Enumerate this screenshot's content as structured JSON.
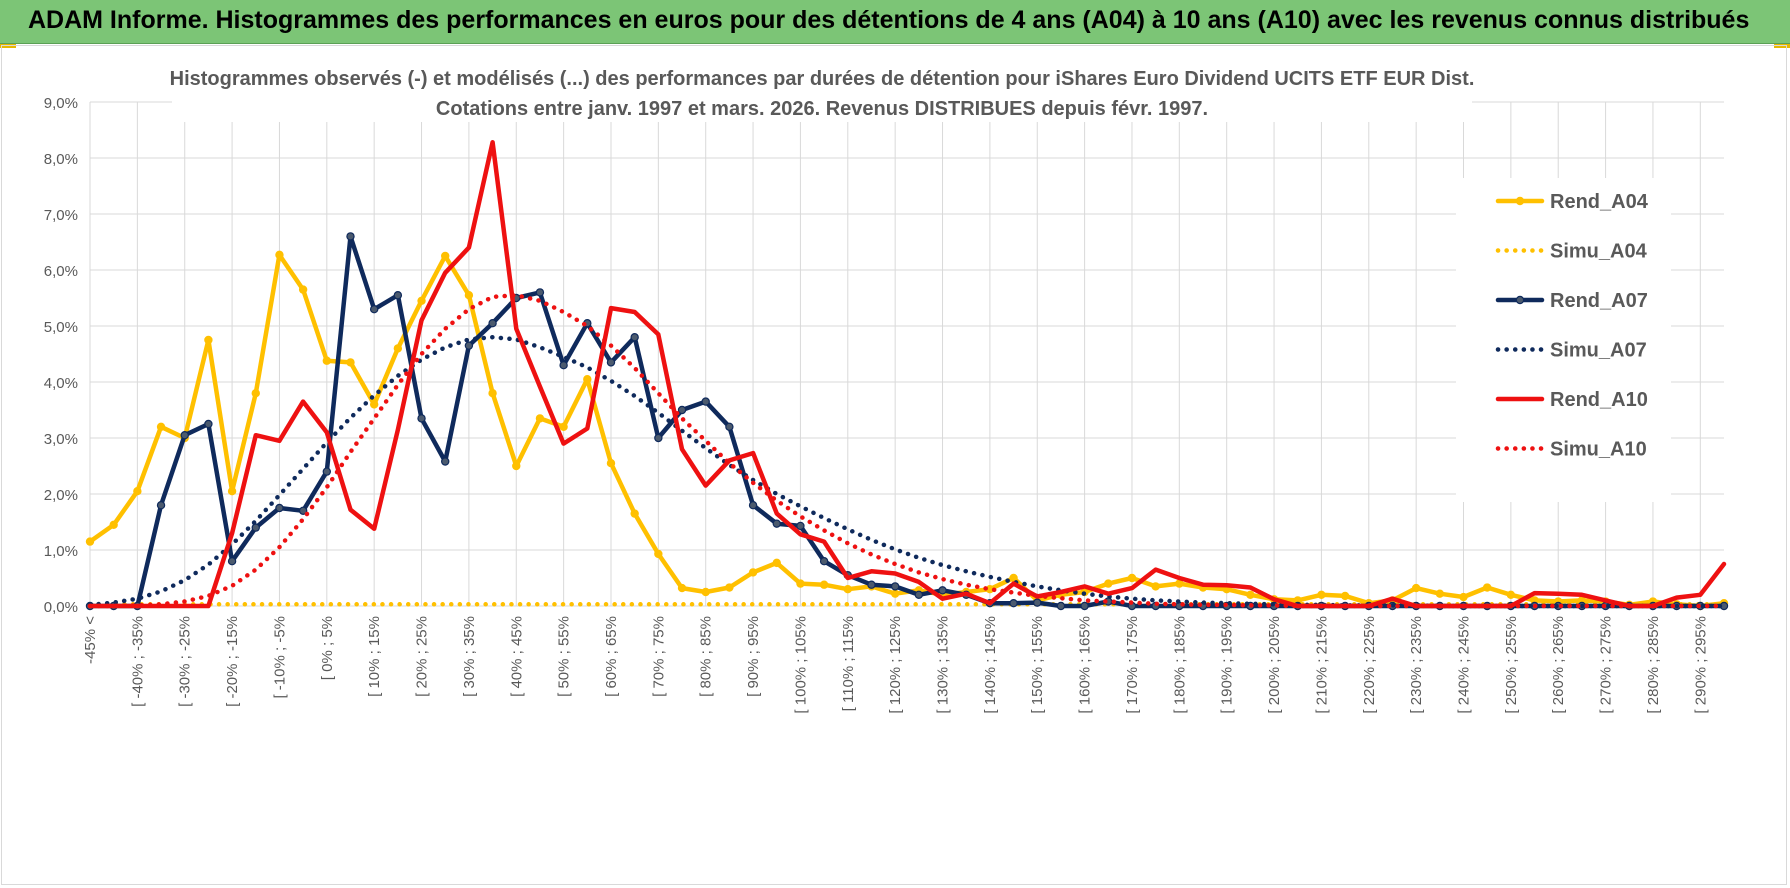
{
  "banner": {
    "title": "ADAM Informe. Histogrammes des performances en euros pour des détentions de 4 ans (A04) à 10 ans (A10) avec les revenus connus distribués",
    "color": "#7cc576",
    "accent": "#e6b800"
  },
  "chart_data": {
    "type": "line",
    "title_line1": "Histogrammes observés (-) et modélisés (...) des performances par durées de détention pour iShares Euro Dividend UCITS ETF EUR Dist.",
    "title_line2": "Cotations entre janv. 1997 et mars. 2026. Revenus DISTRIBUES depuis févr. 1997.",
    "xlabel": "",
    "ylabel": "",
    "ylim": [
      0,
      9
    ],
    "yticks": [
      "0,0%",
      "1,0%",
      "2,0%",
      "3,0%",
      "4,0%",
      "5,0%",
      "6,0%",
      "7,0%",
      "8,0%",
      "9,0%"
    ],
    "grid": true,
    "legend_position": "right",
    "categories": [
      "-45% <",
      "[ -45% ; -40%",
      "[ -40% ; -35%",
      "[ -35% ; -30%",
      "[ -30% ; -25%",
      "[ -25% ; -20%",
      "[ -20% ; -15%",
      "[ -15% ; -10%",
      "[ -10% ; -5%",
      "[ -5% ; 0%",
      "[ 0% ; 5%",
      "[ 5% ; 10%",
      "[ 10% ; 15%",
      "[ 15% ; 20%",
      "[ 20% ; 25%",
      "[ 25% ; 30%",
      "[ 30% ; 35%",
      "[ 35% ; 40%",
      "[ 40% ; 45%",
      "[ 45% ; 50%",
      "[ 50% ; 55%",
      "[ 55% ; 60%",
      "[ 60% ; 65%",
      "[ 65% ; 70%",
      "[ 70% ; 75%",
      "[ 75% ; 80%",
      "[ 80% ; 85%",
      "[ 85% ; 90%",
      "[ 90% ; 95%",
      "[ 95% ; 100%",
      "[ 100% ; 105%",
      "[ 105% ; 110%",
      "[ 110% ; 115%",
      "[ 115% ; 120%",
      "[ 120% ; 125%",
      "[ 125% ; 130%",
      "[ 130% ; 135%",
      "[ 135% ; 140%",
      "[ 140% ; 145%",
      "[ 145% ; 150%",
      "[ 150% ; 155%",
      "[ 155% ; 160%",
      "[ 160% ; 165%",
      "[ 165% ; 170%",
      "[ 170% ; 175%",
      "[ 175% ; 180%",
      "[ 180% ; 185%",
      "[ 185% ; 190%",
      "[ 190% ; 195%",
      "[ 195% ; 200%",
      "[ 200% ; 205%",
      "[ 205% ; 210%",
      "[ 210% ; 215%",
      "[ 215% ; 220%",
      "[ 220% ; 225%",
      "[ 225% ; 230%",
      "[ 230% ; 235%",
      "[ 235% ; 240%",
      "[ 240% ; 245%",
      "[ 245% ; 250%",
      "[ 250% ; 255%",
      "[ 255% ; 260%",
      "[ 260% ; 265%",
      "[ 265% ; 270%",
      "[ 270% ; 275%",
      "[ 275% ; 280%",
      "[ 280% ; 285%",
      "[ 285% ; 290%",
      "[ 290% ; 295%",
      "[ 295% ; 300%"
    ],
    "visible_tick_labels": [
      "-45% <",
      "[ -40% ; -35%",
      "[ -30% ; -25%",
      "[ -20% ; -15%",
      "[ -10% ; -5%",
      "[ 0% ; 5%",
      "[ 10% ; 15%",
      "[ 20% ; 25%",
      "[ 30% ; 35%",
      "[ 40% ; 45%",
      "[ 50% ; 55%",
      "[ 60% ; 65%",
      "[ 70% ; 75%",
      "[ 80% ; 85%",
      "[ 90% ; 95%",
      "[ 100% ; 105%",
      "[ 110% ; 115%",
      "[ 120% ; 125%",
      "[ 130% ; 135%",
      "[ 140% ; 145%",
      "[ 150% ; 155%",
      "[ 160% ; 165%",
      "[ 170% ; 175%",
      "[ 180% ; 185%",
      "[ 190% ; 195%",
      "[ 200% ; 205%",
      "[ 210% ; 215%",
      "[ 220% ; 225%",
      "[ 230% ; 235%",
      "[ 240% ; 245%",
      "[ 250% ; 255%",
      "[ 260% ; 265%",
      "[ 270% ; 275%",
      "[ 280% ; 285%",
      "[ 290% ; 295%"
    ],
    "series": [
      {
        "name": "Rend_A04",
        "style": "solid",
        "markers": true,
        "color": "#ffc000",
        "values": [
          1.15,
          1.45,
          2.05,
          3.2,
          3.0,
          4.75,
          2.05,
          3.8,
          6.27,
          5.65,
          4.38,
          4.35,
          3.6,
          4.6,
          5.45,
          6.25,
          5.55,
          3.8,
          2.5,
          3.35,
          3.2,
          4.05,
          2.55,
          1.65,
          0.93,
          0.32,
          0.25,
          0.33,
          0.6,
          0.77,
          0.4,
          0.38,
          0.3,
          0.35,
          0.22,
          0.28,
          0.2,
          0.25,
          0.3,
          0.5,
          0.1,
          0.2,
          0.25,
          0.4,
          0.5,
          0.35,
          0.4,
          0.33,
          0.3,
          0.2,
          0.12,
          0.1,
          0.2,
          0.18,
          0.05,
          0.1,
          0.32,
          0.22,
          0.16,
          0.33,
          0.2,
          0.1,
          0.08,
          0.1,
          0.08,
          0.02,
          0.08,
          0.03,
          0.0,
          0.05
        ]
      },
      {
        "name": "Simu_A04",
        "style": "dotted",
        "markers": false,
        "color": "#ffc000",
        "values": [
          0.03,
          0.03,
          0.03,
          0.03,
          0.03,
          0.03,
          0.03,
          0.03,
          0.03,
          0.03,
          0.03,
          0.03,
          0.03,
          0.03,
          0.03,
          0.03,
          0.03,
          0.03,
          0.03,
          0.03,
          0.03,
          0.03,
          0.03,
          0.03,
          0.03,
          0.03,
          0.03,
          0.03,
          0.03,
          0.03,
          0.03,
          0.03,
          0.03,
          0.03,
          0.03,
          0.03,
          0.03,
          0.03,
          0.03,
          0.03,
          0.03,
          0.03,
          0.03,
          0.03,
          0.03,
          0.03,
          0.03,
          0.03,
          0.03,
          0.03,
          0.03,
          0.03,
          0.03,
          0.03,
          0.03,
          0.03,
          0.03,
          0.03,
          0.03,
          0.03,
          0.03,
          0.03,
          0.03,
          0.03,
          0.03,
          0.03,
          0.03,
          0.03,
          0.03,
          0.03
        ]
      },
      {
        "name": "Rend_A07",
        "style": "solid",
        "markers": true,
        "color": "#0f2a5c",
        "values": [
          0.0,
          0.0,
          0.0,
          1.8,
          3.05,
          3.25,
          0.8,
          1.4,
          1.75,
          1.7,
          2.4,
          6.6,
          5.3,
          5.55,
          3.35,
          2.58,
          4.65,
          5.05,
          5.5,
          5.6,
          4.3,
          5.05,
          4.35,
          4.8,
          3.0,
          3.5,
          3.65,
          3.2,
          1.8,
          1.47,
          1.43,
          0.8,
          0.55,
          0.38,
          0.35,
          0.2,
          0.28,
          0.2,
          0.05,
          0.05,
          0.06,
          0.0,
          0.0,
          0.08,
          0.0,
          0.0,
          0.0,
          0.0,
          0.0,
          0.0,
          0.0,
          0.0,
          0.0,
          0.0,
          0.0,
          0.0,
          0.0,
          0.0,
          0.0,
          0.0,
          0.0,
          0.0,
          0.0,
          0.0,
          0.0,
          0.0,
          0.0,
          0.0,
          0.0,
          0.0
        ]
      },
      {
        "name": "Simu_A07",
        "style": "dotted",
        "markers": false,
        "color": "#0f2a5c",
        "values": [
          0.02,
          0.06,
          0.13,
          0.26,
          0.46,
          0.74,
          1.1,
          1.52,
          1.98,
          2.45,
          2.92,
          3.36,
          3.76,
          4.11,
          4.4,
          4.62,
          4.76,
          4.8,
          4.76,
          4.62,
          4.45,
          4.26,
          4.02,
          3.75,
          3.45,
          3.13,
          2.82,
          2.52,
          2.25,
          2.0,
          1.78,
          1.57,
          1.37,
          1.18,
          1.01,
          0.86,
          0.73,
          0.62,
          0.52,
          0.43,
          0.35,
          0.28,
          0.22,
          0.17,
          0.13,
          0.1,
          0.08,
          0.06,
          0.05,
          0.04,
          0.03,
          0.02,
          0.02,
          0.01,
          0.01,
          0.01,
          0.01,
          0.0,
          0.0,
          0.0,
          0.0,
          0.0,
          0.0,
          0.0,
          0.0,
          0.0,
          0.0,
          0.0,
          0.0,
          0.0
        ]
      },
      {
        "name": "Rend_A10",
        "style": "solid",
        "markers": false,
        "color": "#ee1111",
        "values": [
          0.0,
          0.0,
          0.0,
          0.0,
          0.0,
          0.0,
          1.3,
          3.05,
          2.95,
          3.65,
          3.1,
          1.72,
          1.38,
          3.15,
          5.1,
          5.95,
          6.4,
          8.28,
          4.95,
          3.92,
          2.9,
          3.17,
          5.32,
          5.25,
          4.85,
          2.8,
          2.15,
          2.6,
          2.73,
          1.65,
          1.28,
          1.15,
          0.5,
          0.62,
          0.58,
          0.43,
          0.13,
          0.22,
          0.05,
          0.4,
          0.17,
          0.25,
          0.35,
          0.22,
          0.32,
          0.65,
          0.5,
          0.38,
          0.37,
          0.33,
          0.12,
          0.0,
          0.0,
          0.0,
          0.0,
          0.13,
          0.0,
          0.0,
          0.0,
          0.0,
          0.0,
          0.23,
          0.22,
          0.2,
          0.1,
          0.0,
          0.0,
          0.15,
          0.2,
          0.75
        ]
      },
      {
        "name": "Simu_A10",
        "style": "dotted",
        "markers": false,
        "color": "#ee1111",
        "values": [
          0.0,
          0.0,
          0.01,
          0.03,
          0.08,
          0.18,
          0.36,
          0.65,
          1.05,
          1.55,
          2.12,
          2.75,
          3.35,
          3.95,
          4.5,
          4.95,
          5.3,
          5.52,
          5.55,
          5.45,
          5.25,
          5.0,
          4.65,
          4.25,
          3.8,
          3.35,
          2.95,
          2.55,
          2.2,
          1.88,
          1.6,
          1.35,
          1.12,
          0.92,
          0.75,
          0.6,
          0.48,
          0.38,
          0.3,
          0.24,
          0.18,
          0.14,
          0.1,
          0.08,
          0.06,
          0.04,
          0.03,
          0.02,
          0.02,
          0.01,
          0.01,
          0.0,
          0.0,
          0.0,
          0.0,
          0.0,
          0.0,
          0.0,
          0.0,
          0.0,
          0.0,
          0.0,
          0.0,
          0.0,
          0.0,
          0.0,
          0.0,
          0.0,
          0.0,
          0.0
        ]
      }
    ]
  }
}
